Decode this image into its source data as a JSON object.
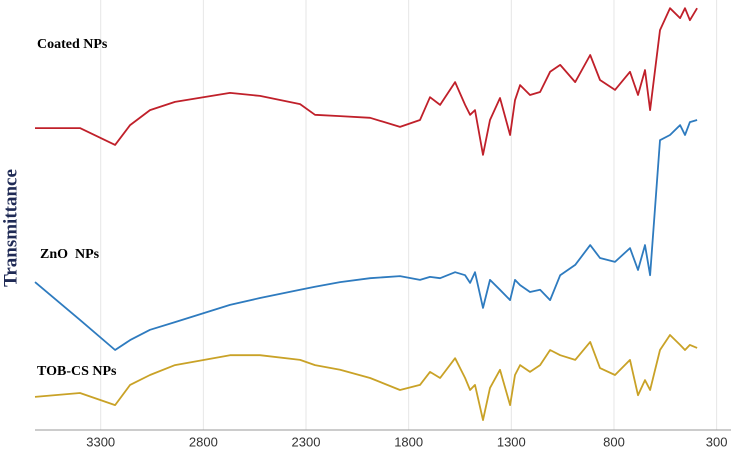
{
  "chart_data": {
    "type": "line",
    "y_label": "Transmittance",
    "x": [
      3620,
      3401,
      3230,
      3157,
      3060,
      2938,
      2670,
      2524,
      2329,
      2256,
      2134,
      1988,
      1842,
      1745,
      1696,
      1647,
      1574,
      1525,
      1501,
      1477,
      1438,
      1404,
      1355,
      1306,
      1282,
      1257,
      1209,
      1160,
      1111,
      1062,
      989,
      916,
      868,
      795,
      722,
      683,
      649,
      624,
      576,
      527,
      478,
      454,
      430,
      395
    ],
    "series": [
      {
        "name": "Coated NPs",
        "color": "#c0202a",
        "values": [
          70.2,
          70.2,
          66.3,
          70.9,
          74.4,
          76.3,
          78.4,
          77.7,
          75.8,
          73.3,
          73.0,
          72.6,
          70.5,
          72.1,
          77.4,
          75.6,
          80.9,
          75.6,
          73.3,
          74.4,
          64.0,
          72.1,
          77.2,
          68.6,
          76.7,
          80.2,
          77.9,
          78.6,
          83.3,
          84.9,
          80.9,
          87.2,
          81.4,
          79.1,
          83.3,
          77.9,
          83.7,
          74.4,
          93.0,
          98.1,
          95.8,
          98.1,
          95.3,
          98.1
        ]
      },
      {
        "name": "ZnO  NPs",
        "color": "#2e7bbf",
        "values": [
          34.4,
          25.6,
          18.6,
          20.9,
          23.3,
          25.1,
          29.1,
          30.7,
          32.6,
          33.3,
          34.4,
          35.3,
          35.8,
          34.9,
          35.6,
          35.3,
          36.7,
          36.0,
          34.2,
          36.7,
          28.4,
          34.9,
          32.6,
          30.2,
          34.9,
          33.7,
          32.1,
          32.6,
          30.2,
          36.0,
          38.4,
          43.0,
          40.0,
          39.1,
          42.3,
          37.2,
          43.0,
          36.0,
          67.4,
          68.6,
          70.9,
          68.6,
          71.6,
          72.1
        ]
      },
      {
        "name": "TOB-CS NPs",
        "color": "#c9a227",
        "values": [
          7.7,
          8.6,
          5.8,
          10.5,
          12.8,
          15.1,
          17.4,
          17.4,
          16.3,
          15.1,
          14.0,
          12.1,
          9.3,
          10.5,
          13.5,
          12.1,
          16.7,
          12.1,
          9.3,
          10.5,
          2.3,
          9.8,
          14.0,
          5.8,
          12.8,
          15.1,
          13.5,
          15.1,
          18.6,
          17.4,
          16.3,
          20.5,
          14.4,
          12.8,
          16.3,
          8.1,
          11.6,
          9.3,
          18.6,
          22.1,
          19.8,
          18.6,
          19.8,
          19.1
        ]
      }
    ],
    "xlim": [
      3620,
      230
    ],
    "xticks": [
      3300,
      2800,
      2300,
      1800,
      1300,
      800,
      300
    ],
    "ylim": [
      0,
      100
    ],
    "grid": true
  }
}
